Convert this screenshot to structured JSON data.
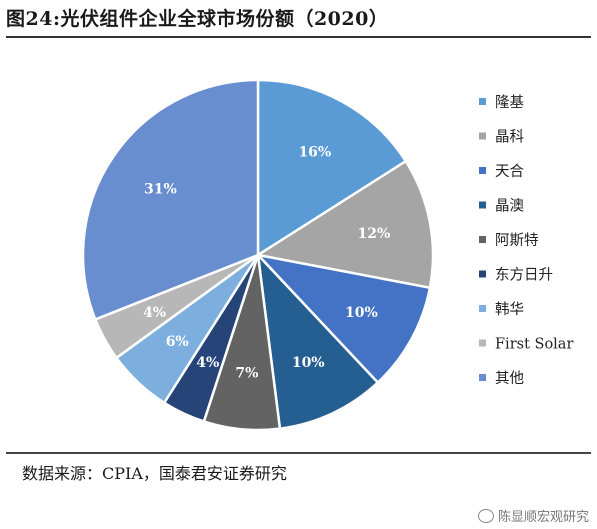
{
  "header": {
    "title": "图24:光伏组件企业全球市场份额（2020）"
  },
  "footer": {
    "source": "数据来源：CPIA，国泰君安证券研究",
    "watermark": "陈显顺宏观研究"
  },
  "chart_data": {
    "type": "pie",
    "title": "图24:光伏组件企业全球市场份额（2020）",
    "legend_position": "right",
    "slices": [
      {
        "name": "隆基",
        "value": 16,
        "label": "16%",
        "color": "#5b9bd5"
      },
      {
        "name": "晶科",
        "value": 12,
        "label": "12%",
        "color": "#a5a5a5"
      },
      {
        "name": "天合",
        "value": 10,
        "label": "10%",
        "color": "#4472c4"
      },
      {
        "name": "晶澳",
        "value": 10,
        "label": "10%",
        "color": "#255e91"
      },
      {
        "name": "阿斯特",
        "value": 7,
        "label": "7%",
        "color": "#636363"
      },
      {
        "name": "东方日升",
        "value": 4,
        "label": "4%",
        "color": "#264478"
      },
      {
        "name": "韩华",
        "value": 6,
        "label": "6%",
        "color": "#7cafdd"
      },
      {
        "name": "First Solar",
        "value": 4,
        "label": "4%",
        "color": "#b7b7b7"
      },
      {
        "name": "其他",
        "value": 31,
        "label": "31%",
        "color": "#698ed0"
      }
    ]
  }
}
